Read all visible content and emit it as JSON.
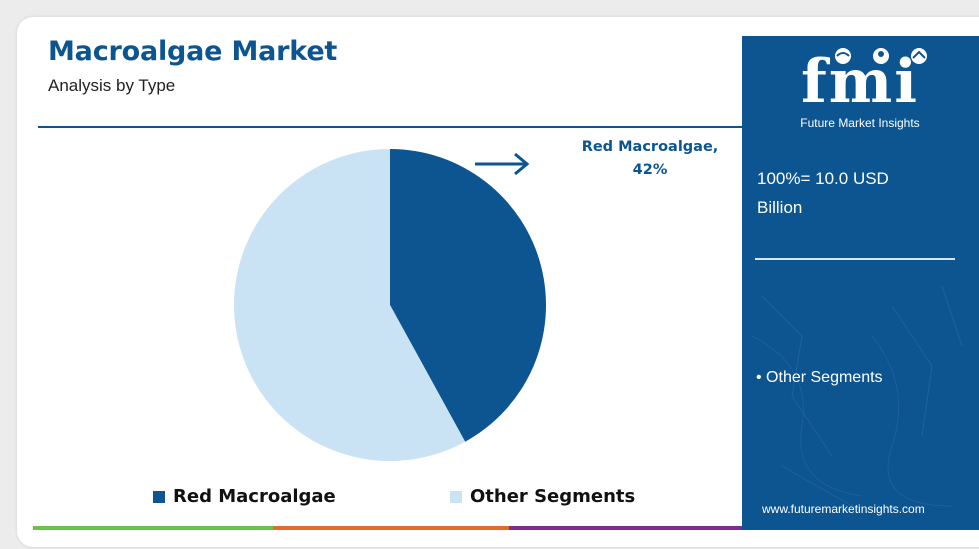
{
  "header": {
    "title": "Macroalgae Market",
    "subtitle": "Analysis by Type"
  },
  "chart_data": {
    "type": "pie",
    "categories": [
      "Red Macroalgae",
      "Other Segments"
    ],
    "values": [
      42,
      58
    ],
    "colors": [
      "#0d5590",
      "#c9e2f4"
    ],
    "callout": {
      "line1": "Red Macroalgae,",
      "line2": "42%"
    },
    "legend": [
      "Red Macroalgae",
      "Other Segments"
    ],
    "legend_position": "bottom"
  },
  "panel": {
    "brand": "fmi",
    "brand_name": "Future Market Insights",
    "total_line1": "100%= 10.0 USD",
    "total_line2": "Billion",
    "bullet": "• Other Segments",
    "url": "www.futuremarketinsights.com",
    "background": "#0d5590"
  },
  "footer_colors": [
    "#6cbf4a",
    "#e36b2c",
    "#7a2f8f"
  ]
}
